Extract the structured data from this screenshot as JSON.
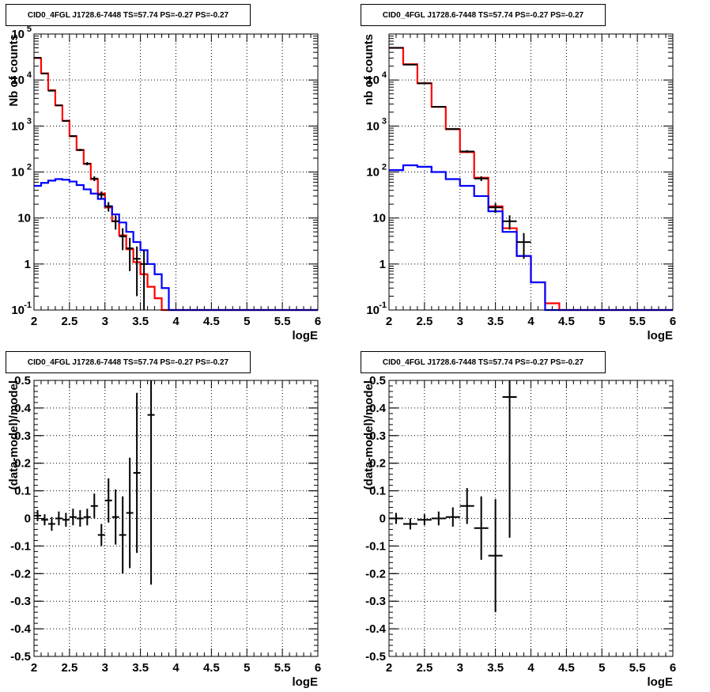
{
  "colors": {
    "model": "#ff0000",
    "background": "#0000ff",
    "data": "#000000"
  },
  "chart_data": [
    {
      "type": "line",
      "title": "CID0_4FGL J1728.6-7448 TS=57.74 PS=-0.27 PS=-0.27",
      "xlabel": "logE",
      "ylabel": "Nb of counts",
      "xlim": [
        2,
        6
      ],
      "ylim": [
        0.1,
        100000
      ],
      "yscale": "log",
      "xticks": [
        "2",
        "2.5",
        "3",
        "3.5",
        "4",
        "4.5",
        "5",
        "5.5",
        "6"
      ],
      "yticks": [
        "10^-1",
        "1",
        "10",
        "10^2",
        "10^3",
        "10^4",
        "10^5"
      ],
      "grid": true,
      "series": [
        {
          "kind": "step",
          "color": "red",
          "x_edges": [
            2.0,
            2.1,
            2.2,
            2.3,
            2.4,
            2.5,
            2.6,
            2.7,
            2.8,
            2.9,
            3.0,
            3.1,
            3.2,
            3.3,
            3.4,
            3.5,
            3.6,
            3.7,
            3.8,
            3.9,
            4.0,
            4.1,
            4.2,
            4.3,
            4.4,
            4.5,
            4.6,
            4.7,
            4.8,
            4.9,
            5.0,
            5.1,
            5.2,
            5.3,
            5.4,
            5.5,
            5.6,
            5.7,
            5.8,
            5.9,
            6.0
          ],
          "values": [
            30000,
            14000,
            6000,
            2800,
            1300,
            600,
            300,
            150,
            70,
            34,
            17,
            8.5,
            4.2,
            2.1,
            1.1,
            0.6,
            0.32,
            0.18,
            0.1,
            0.1,
            0.1,
            0.1,
            0.1,
            0.1,
            0.1,
            0.1,
            0.1,
            0.1,
            0.1,
            0.1,
            0.1,
            0.1,
            0.1,
            0.1,
            0.1,
            0.1,
            0.1,
            0.1,
            0.1,
            0.1
          ]
        },
        {
          "kind": "step",
          "color": "blue",
          "x_edges": [
            2.0,
            2.1,
            2.2,
            2.3,
            2.4,
            2.5,
            2.6,
            2.7,
            2.8,
            2.9,
            3.0,
            3.1,
            3.2,
            3.3,
            3.4,
            3.5,
            3.6,
            3.7,
            3.8,
            3.9,
            4.0,
            4.1,
            4.2,
            4.3,
            4.4,
            4.5,
            4.6,
            4.7,
            4.8,
            4.9,
            5.0,
            5.1,
            5.2,
            5.3,
            5.4,
            5.5,
            5.6,
            5.7,
            5.8,
            5.9,
            6.0
          ],
          "values": [
            50,
            58,
            65,
            70,
            68,
            62,
            52,
            42,
            34,
            26,
            18,
            12,
            8,
            5,
            3,
            2,
            1,
            0.6,
            0.3,
            0.1,
            0.1,
            0.1,
            0.1,
            0.1,
            0.1,
            0.1,
            0.1,
            0.1,
            0.1,
            0.1,
            0.1,
            0.1,
            0.1,
            0.1,
            0.1,
            0.1,
            0.1,
            0.1,
            0.1,
            0.1
          ]
        },
        {
          "kind": "errorbars",
          "color": "black",
          "points": [
            {
              "x": 2.05,
              "y": 30500,
              "yerr": 175
            },
            {
              "x": 2.15,
              "y": 13800,
              "yerr": 117
            },
            {
              "x": 2.25,
              "y": 5850,
              "yerr": 76
            },
            {
              "x": 2.35,
              "y": 2810,
              "yerr": 53
            },
            {
              "x": 2.45,
              "y": 1290,
              "yerr": 36
            },
            {
              "x": 2.55,
              "y": 605,
              "yerr": 25
            },
            {
              "x": 2.65,
              "y": 302,
              "yerr": 17
            },
            {
              "x": 2.75,
              "y": 152,
              "yerr": 12
            },
            {
              "x": 2.85,
              "y": 72,
              "yerr": 8.5
            },
            {
              "x": 2.95,
              "y": 32,
              "yerr": 5.7
            },
            {
              "x": 3.05,
              "y": 18,
              "yerr": 4.2
            },
            {
              "x": 3.15,
              "y": 8.5,
              "yerr": 2.9
            },
            {
              "x": 3.25,
              "y": 4,
              "yerr": 2
            },
            {
              "x": 3.35,
              "y": 2.2,
              "yerr": 1.5
            },
            {
              "x": 3.45,
              "y": 1.3,
              "yerr": 1.1
            },
            {
              "x": 3.55,
              "y": 1,
              "yerr": 1
            }
          ]
        }
      ]
    },
    {
      "type": "line",
      "title": "CID0_4FGL J1728.6-7448 TS=57.74 PS=-0.27 PS=-0.27",
      "xlabel": "logE",
      "ylabel": "nb of counts",
      "xlim": [
        2,
        6
      ],
      "ylim": [
        0.1,
        100000
      ],
      "yscale": "log",
      "xticks": [
        "2",
        "2.5",
        "3",
        "3.5",
        "4",
        "4.5",
        "5",
        "5.5",
        "6"
      ],
      "yticks": [
        "10^-1",
        "1",
        "10",
        "10^2",
        "10^3",
        "10^4"
      ],
      "grid": true,
      "series": [
        {
          "kind": "step",
          "color": "red",
          "x_edges": [
            2.0,
            2.2,
            2.4,
            2.6,
            2.8,
            3.0,
            3.2,
            3.4,
            3.6,
            3.8,
            4.0,
            4.2,
            4.4,
            4.6,
            4.8,
            5.0,
            5.2,
            5.4,
            5.6,
            5.8,
            6.0
          ],
          "values": [
            50000,
            22000,
            8500,
            2600,
            850,
            270,
            75,
            18,
            6,
            1.5,
            0.4,
            0.14,
            0.1,
            0.1,
            0.1,
            0.1,
            0.1,
            0.1,
            0.1,
            0.1
          ]
        },
        {
          "kind": "step",
          "color": "blue",
          "x_edges": [
            2.0,
            2.2,
            2.4,
            2.6,
            2.8,
            3.0,
            3.2,
            3.4,
            3.6,
            3.8,
            4.0,
            4.2,
            4.4,
            4.6,
            4.8,
            5.0,
            5.2,
            5.4,
            5.6,
            5.8,
            6.0
          ],
          "values": [
            110,
            140,
            130,
            100,
            70,
            50,
            30,
            14,
            5,
            1.5,
            0.4,
            0.1,
            0.1,
            0.1,
            0.1,
            0.1,
            0.1,
            0.1,
            0.1,
            0.1
          ]
        },
        {
          "kind": "errorbars",
          "color": "black",
          "points": [
            {
              "x": 2.1,
              "y": 50000,
              "yerr": 224
            },
            {
              "x": 2.3,
              "y": 21600,
              "yerr": 147
            },
            {
              "x": 2.5,
              "y": 8450,
              "yerr": 92
            },
            {
              "x": 2.7,
              "y": 2620,
              "yerr": 51
            },
            {
              "x": 2.9,
              "y": 860,
              "yerr": 29
            },
            {
              "x": 3.1,
              "y": 280,
              "yerr": 17
            },
            {
              "x": 3.3,
              "y": 72,
              "yerr": 8.5
            },
            {
              "x": 3.5,
              "y": 17,
              "yerr": 4.1
            },
            {
              "x": 3.7,
              "y": 8.5,
              "yerr": 2.9
            },
            {
              "x": 3.9,
              "y": 3,
              "yerr": 1.7
            }
          ]
        }
      ]
    },
    {
      "type": "scatter",
      "title": "CID0_4FGL J1728.6-7448 TS=57.74 PS=-0.27 PS=-0.27",
      "xlabel": "logE",
      "ylabel": "(data-model)/model",
      "xlim": [
        2,
        6
      ],
      "ylim": [
        -0.5,
        0.5
      ],
      "yscale": "linear",
      "xticks": [
        "2",
        "2.5",
        "3",
        "3.5",
        "4",
        "4.5",
        "5",
        "5.5",
        "6"
      ],
      "yticks": [
        "-0.5",
        "-0.4",
        "-0.3",
        "-0.2",
        "-0.1",
        "0",
        "0.1",
        "0.2",
        "0.3",
        "0.4",
        "0.5"
      ],
      "grid": true,
      "series": [
        {
          "kind": "errorbars",
          "color": "black",
          "points": [
            {
              "x": 2.05,
              "y": 0.01,
              "yerr": 0.02
            },
            {
              "x": 2.15,
              "y": -0.005,
              "yerr": 0.02
            },
            {
              "x": 2.25,
              "y": -0.02,
              "yerr": 0.025
            },
            {
              "x": 2.35,
              "y": 0.0,
              "yerr": 0.025
            },
            {
              "x": 2.45,
              "y": -0.005,
              "yerr": 0.025
            },
            {
              "x": 2.55,
              "y": 0.005,
              "yerr": 0.03
            },
            {
              "x": 2.65,
              "y": 0.0,
              "yerr": 0.03
            },
            {
              "x": 2.75,
              "y": 0.005,
              "yerr": 0.03
            },
            {
              "x": 2.85,
              "y": 0.045,
              "yerr": 0.045
            },
            {
              "x": 2.95,
              "y": -0.06,
              "yerr": 0.04
            },
            {
              "x": 3.05,
              "y": 0.065,
              "yerr": 0.08
            },
            {
              "x": 3.15,
              "y": 0.005,
              "yerr": 0.1
            },
            {
              "x": 3.25,
              "y": -0.06,
              "yerr": 0.14
            },
            {
              "x": 3.35,
              "y": 0.02,
              "yerr": 0.2
            },
            {
              "x": 3.45,
              "y": 0.165,
              "yerr": 0.29
            },
            {
              "x": 3.65,
              "y": 0.375,
              "yerr": 0.615
            }
          ]
        }
      ]
    },
    {
      "type": "scatter",
      "title": "CID0_4FGL J1728.6-7448 TS=57.74 PS=-0.27 PS=-0.27",
      "xlabel": "logE",
      "ylabel": "(data-model)/model",
      "xlim": [
        2,
        6
      ],
      "ylim": [
        -0.5,
        0.5
      ],
      "yscale": "linear",
      "xticks": [
        "2",
        "2.5",
        "3",
        "3.5",
        "4",
        "4.5",
        "5",
        "5.5",
        "6"
      ],
      "yticks": [
        "-0.5",
        "-0.4",
        "-0.3",
        "-0.2",
        "-0.1",
        "0",
        "0.1",
        "0.2",
        "0.3",
        "0.4",
        "0.5"
      ],
      "grid": true,
      "series": [
        {
          "kind": "errorbars",
          "color": "black",
          "points": [
            {
              "x": 2.1,
              "y": 0.0,
              "yerr": 0.02
            },
            {
              "x": 2.3,
              "y": -0.02,
              "yerr": 0.02
            },
            {
              "x": 2.5,
              "y": -0.005,
              "yerr": 0.02
            },
            {
              "x": 2.7,
              "y": 0.0,
              "yerr": 0.025
            },
            {
              "x": 2.9,
              "y": 0.005,
              "yerr": 0.035
            },
            {
              "x": 3.1,
              "y": 0.045,
              "yerr": 0.065
            },
            {
              "x": 3.3,
              "y": -0.035,
              "yerr": 0.115
            },
            {
              "x": 3.5,
              "y": -0.135,
              "yerr": 0.205
            },
            {
              "x": 3.7,
              "y": 0.44,
              "yerr": 0.51
            }
          ]
        }
      ]
    }
  ]
}
